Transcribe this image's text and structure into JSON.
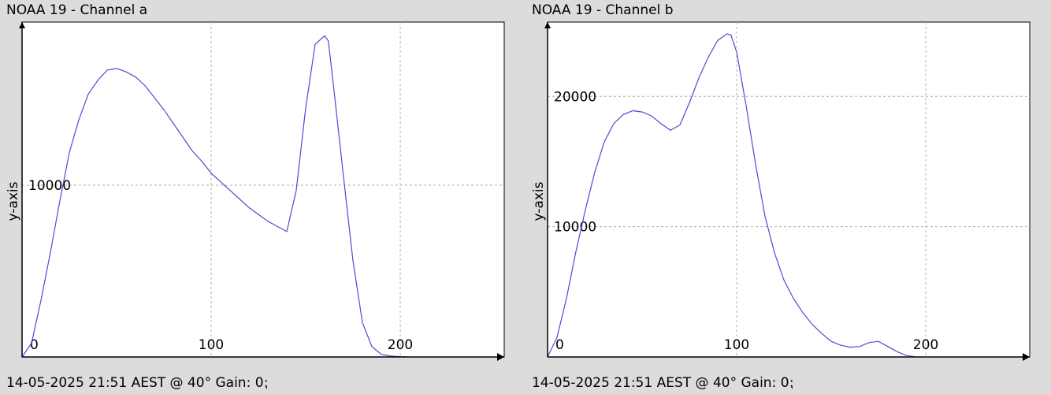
{
  "chart_data": [
    {
      "type": "line",
      "title": "NOAA 19 - Channel a",
      "footer": "14-05-2025 21:51 AEST @ 40° Gain: 0⁏",
      "xlabel": "",
      "ylabel": "y-axis",
      "xlim": [
        0,
        255
      ],
      "ylim": [
        0,
        19500
      ],
      "xticks": [
        0,
        100,
        200
      ],
      "xtick_labels": [
        "0",
        "100",
        "200"
      ],
      "yticks": [
        10000
      ],
      "ytick_labels": [
        "10000"
      ],
      "grid": true,
      "line_color": "#4b4bd6",
      "x": [
        0,
        5,
        10,
        15,
        20,
        25,
        30,
        35,
        40,
        45,
        50,
        55,
        60,
        65,
        70,
        75,
        80,
        85,
        90,
        95,
        100,
        105,
        110,
        115,
        120,
        125,
        130,
        135,
        140,
        145,
        150,
        155,
        160,
        162,
        165,
        170,
        175,
        180,
        185,
        190,
        195,
        200,
        205
      ],
      "y": [
        0,
        800,
        3300,
        6100,
        9100,
        11900,
        13800,
        15300,
        16100,
        16700,
        16800,
        16600,
        16300,
        15800,
        15100,
        14400,
        13600,
        12800,
        12000,
        11400,
        10700,
        10200,
        9700,
        9200,
        8700,
        8300,
        7900,
        7600,
        7300,
        9700,
        14500,
        18200,
        18700,
        18400,
        15500,
        10500,
        5600,
        2000,
        600,
        150,
        50,
        20,
        0
      ]
    },
    {
      "type": "line",
      "title": "NOAA 19 - Channel b",
      "footer": "14-05-2025 21:51 AEST @ 40° Gain: 0⁏",
      "xlabel": "",
      "ylabel": "y-axis",
      "xlim": [
        0,
        255
      ],
      "ylim": [
        0,
        25700
      ],
      "xticks": [
        0,
        100,
        200
      ],
      "xtick_labels": [
        "0",
        "100",
        "200"
      ],
      "yticks": [
        10000,
        20000
      ],
      "ytick_labels": [
        "10000",
        "20000"
      ],
      "grid": true,
      "line_color": "#4b4bd6",
      "x": [
        0,
        5,
        10,
        15,
        20,
        25,
        30,
        35,
        40,
        45,
        50,
        55,
        60,
        65,
        70,
        75,
        80,
        85,
        90,
        95,
        97,
        100,
        105,
        110,
        115,
        120,
        125,
        130,
        135,
        140,
        145,
        150,
        155,
        160,
        165,
        170,
        175,
        180,
        185,
        190,
        195
      ],
      "y": [
        0,
        1500,
        4500,
        8100,
        11300,
        14200,
        16500,
        17900,
        18600,
        18900,
        18800,
        18500,
        17900,
        17400,
        17800,
        19500,
        21400,
        23000,
        24300,
        24800,
        24700,
        23400,
        19300,
        14800,
        10800,
        8000,
        5900,
        4500,
        3400,
        2500,
        1800,
        1200,
        900,
        750,
        800,
        1100,
        1200,
        800,
        400,
        100,
        0
      ]
    }
  ]
}
